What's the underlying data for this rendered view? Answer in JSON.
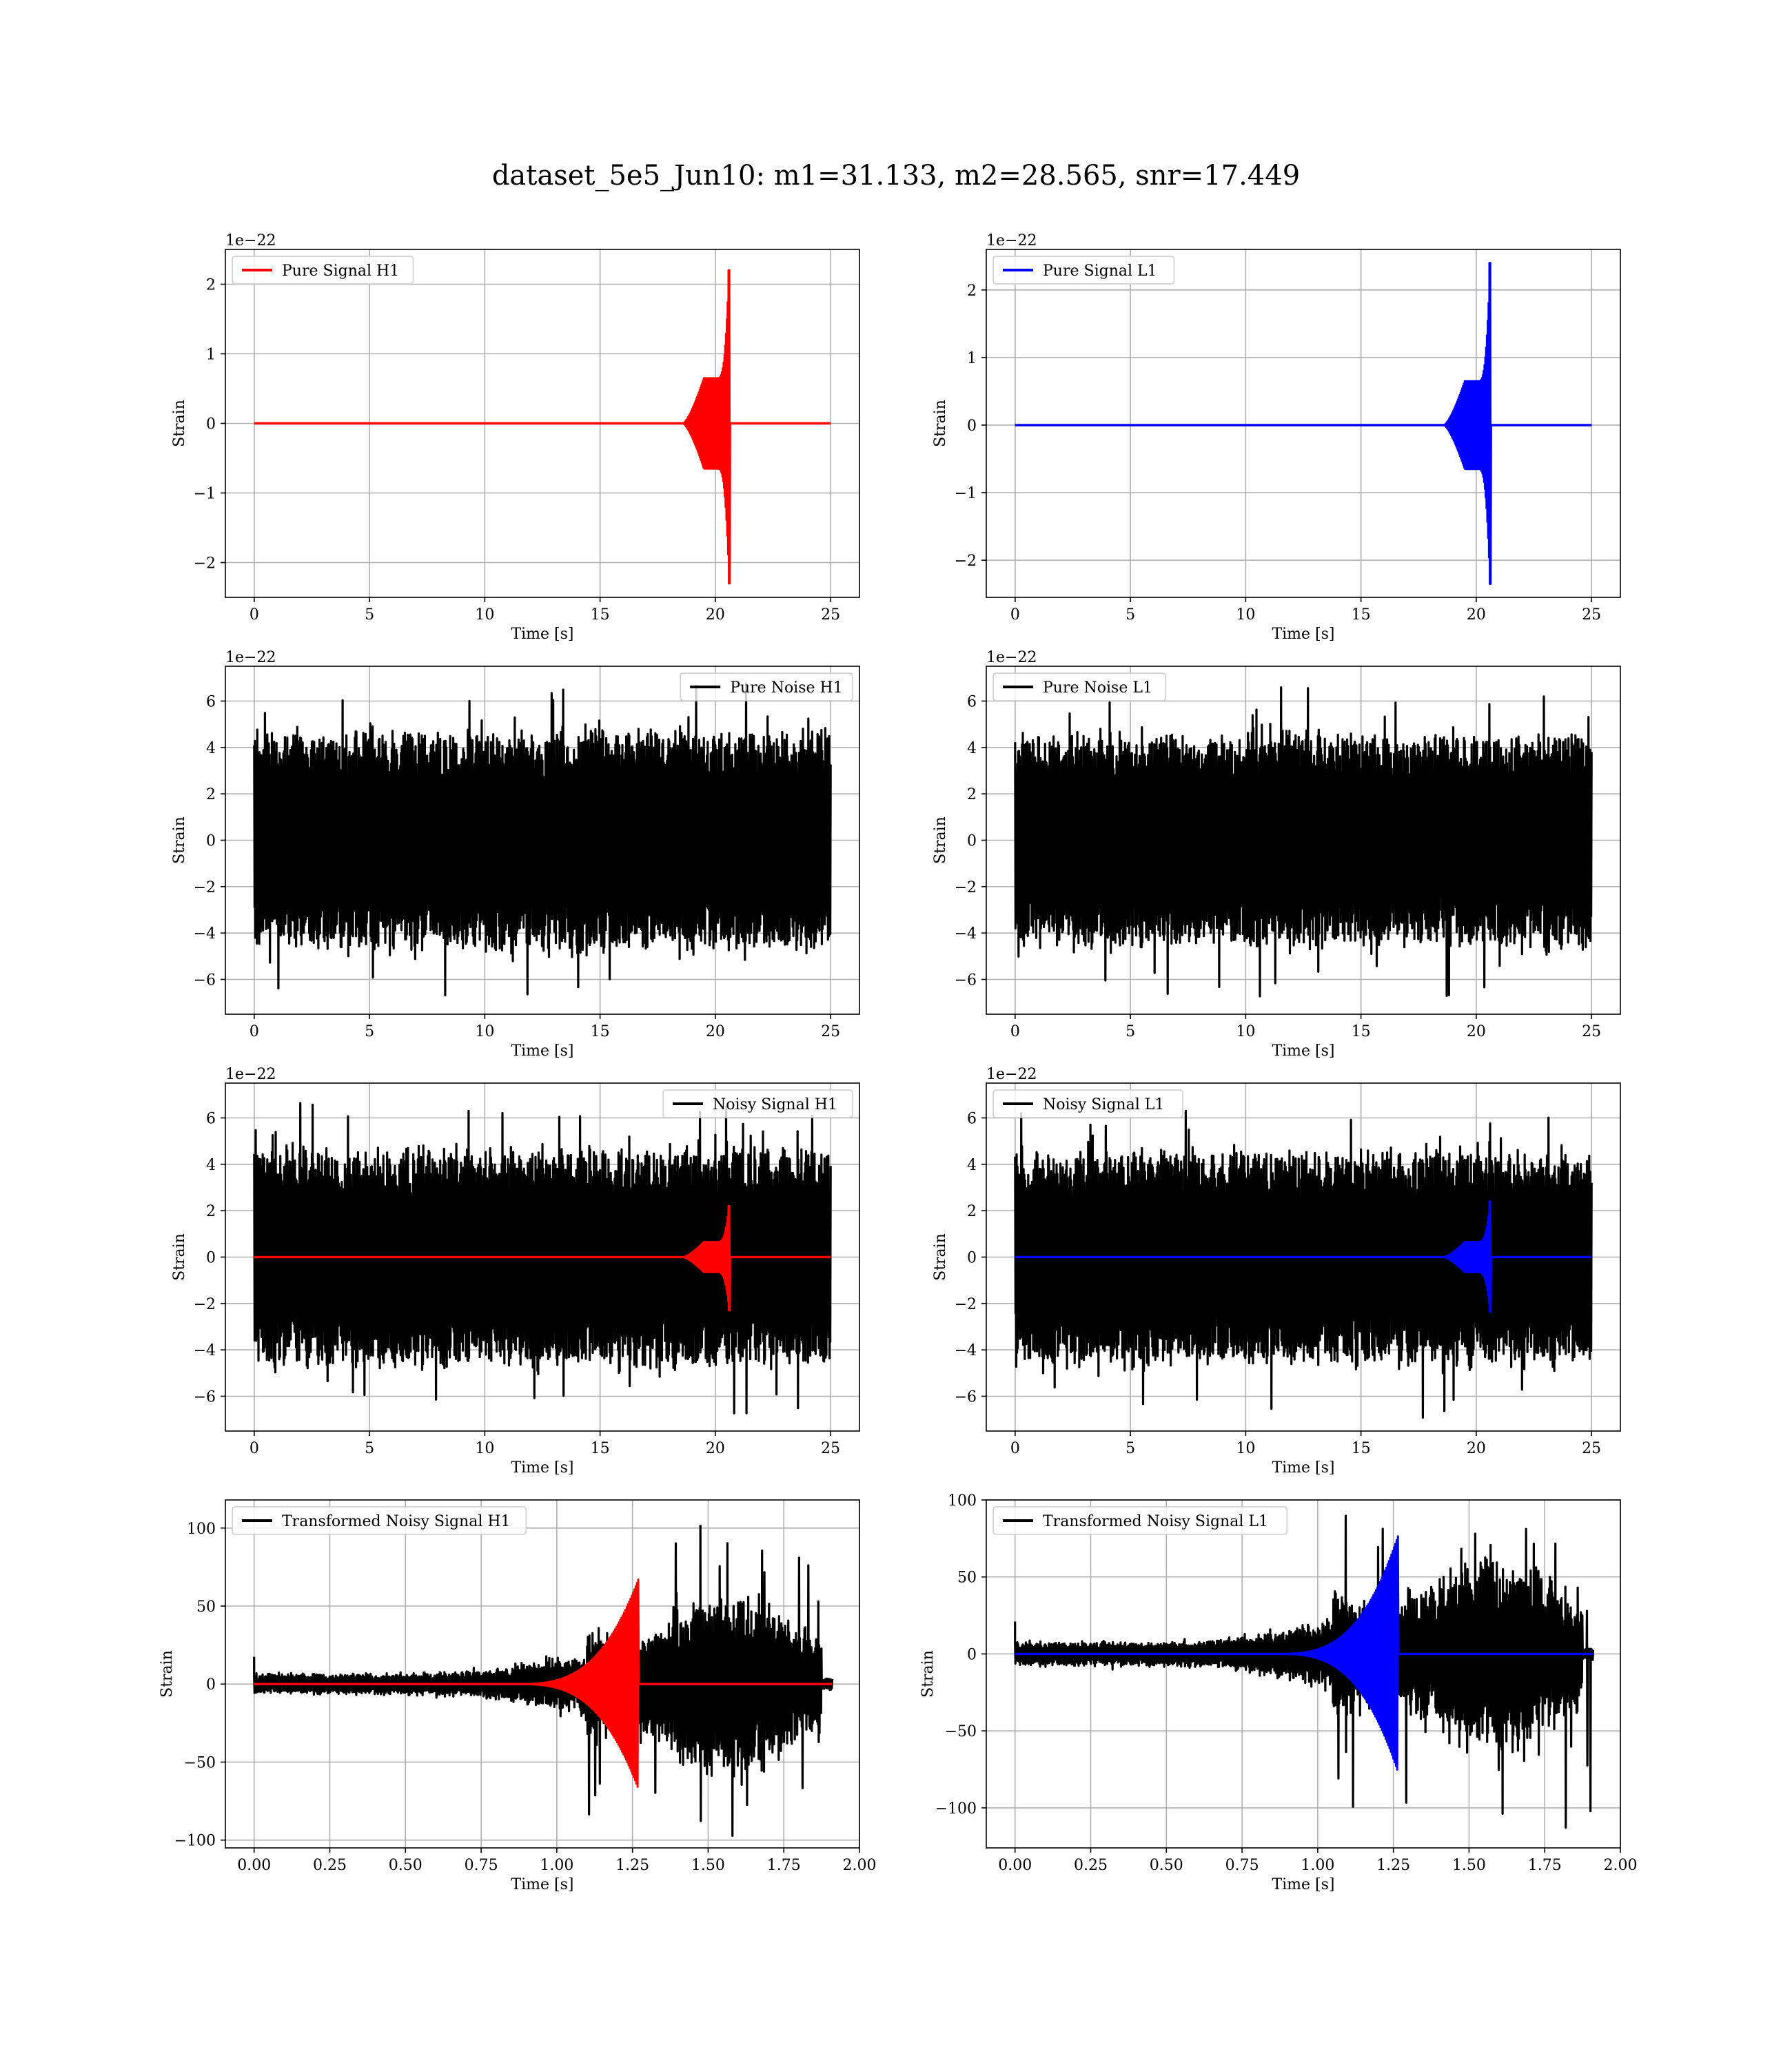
{
  "suptitle": "dataset_5e5_Jun10: m1=31.133, m2=28.565, snr=17.449",
  "colors": {
    "h1_signal": "#ff0000",
    "l1_signal": "#0000ff",
    "noise": "#000000",
    "grid": "#b0b0b0"
  },
  "chart_data": [
    {
      "id": "pure-signal-h1",
      "type": "line",
      "xlabel": "Time [s]",
      "ylabel": "Strain",
      "offset_label": "1e−22",
      "xlim": [
        -1.25,
        26.25
      ],
      "ylim": [
        -2.5,
        2.5
      ],
      "xticks": [
        0,
        5,
        10,
        15,
        20,
        25
      ],
      "xticklabels": [
        "0",
        "5",
        "10",
        "15",
        "20",
        "25"
      ],
      "yticks": [
        -2,
        -1,
        0,
        1,
        2
      ],
      "yticklabels": [
        "−2",
        "−1",
        "0",
        "1",
        "2"
      ],
      "legend": "top-left",
      "grid": true,
      "series": [
        {
          "name": "Pure Signal H1",
          "kind": "chirp",
          "color": "#ff0000",
          "x": [
            0,
            25
          ],
          "merger": 20.6,
          "peak_max": 2.2,
          "peak_min": -2.3,
          "plateau": 0.65,
          "onset": 18.6,
          "in_legend": true
        }
      ]
    },
    {
      "id": "pure-signal-l1",
      "type": "line",
      "xlabel": "Time [s]",
      "ylabel": "Strain",
      "offset_label": "1e−22",
      "xlim": [
        -1.25,
        26.25
      ],
      "ylim": [
        -2.55,
        2.6
      ],
      "xticks": [
        0,
        5,
        10,
        15,
        20,
        25
      ],
      "xticklabels": [
        "0",
        "5",
        "10",
        "15",
        "20",
        "25"
      ],
      "yticks": [
        -2,
        -1,
        0,
        1,
        2
      ],
      "yticklabels": [
        "−2",
        "−1",
        "0",
        "1",
        "2"
      ],
      "legend": "top-left",
      "grid": true,
      "series": [
        {
          "name": "Pure Signal L1",
          "kind": "chirp",
          "color": "#0000ff",
          "x": [
            0,
            25
          ],
          "merger": 20.6,
          "peak_max": 2.4,
          "peak_min": -2.35,
          "plateau": 0.65,
          "onset": 18.6,
          "in_legend": true
        }
      ]
    },
    {
      "id": "pure-noise-h1",
      "type": "line",
      "xlabel": "Time [s]",
      "ylabel": "Strain",
      "offset_label": "1e−22",
      "xlim": [
        -1.25,
        26.25
      ],
      "ylim": [
        -7.5,
        7.5
      ],
      "xticks": [
        0,
        5,
        10,
        15,
        20,
        25
      ],
      "xticklabels": [
        "0",
        "5",
        "10",
        "15",
        "20",
        "25"
      ],
      "yticks": [
        -6,
        -4,
        -2,
        0,
        2,
        4,
        6
      ],
      "yticklabels": [
        "−6",
        "−4",
        "−2",
        "0",
        "2",
        "4",
        "6"
      ],
      "legend": "top-right",
      "grid": true,
      "series": [
        {
          "name": "Pure Noise H1",
          "kind": "noise",
          "color": "#000000",
          "x": [
            0,
            25
          ],
          "envelope": [
            -4.3,
            4.3
          ],
          "max": 6.8,
          "min": -6.9,
          "in_legend": true
        }
      ]
    },
    {
      "id": "pure-noise-l1",
      "type": "line",
      "xlabel": "Time [s]",
      "ylabel": "Strain",
      "offset_label": "1e−22",
      "xlim": [
        -1.25,
        26.25
      ],
      "ylim": [
        -7.5,
        7.5
      ],
      "xticks": [
        0,
        5,
        10,
        15,
        20,
        25
      ],
      "xticklabels": [
        "0",
        "5",
        "10",
        "15",
        "20",
        "25"
      ],
      "yticks": [
        -6,
        -4,
        -2,
        0,
        2,
        4,
        6
      ],
      "yticklabels": [
        "−6",
        "−4",
        "−2",
        "0",
        "2",
        "4",
        "6"
      ],
      "legend": "top-left",
      "grid": true,
      "series": [
        {
          "name": "Pure Noise L1",
          "kind": "noise",
          "color": "#000000",
          "x": [
            0,
            25
          ],
          "envelope": [
            -4.2,
            4.2
          ],
          "max": 6.6,
          "min": -7.0,
          "in_legend": true
        }
      ]
    },
    {
      "id": "noisy-signal-h1",
      "type": "line",
      "xlabel": "Time [s]",
      "ylabel": "Strain",
      "offset_label": "1e−22",
      "xlim": [
        -1.25,
        26.25
      ],
      "ylim": [
        -7.5,
        7.5
      ],
      "xticks": [
        0,
        5,
        10,
        15,
        20,
        25
      ],
      "xticklabels": [
        "0",
        "5",
        "10",
        "15",
        "20",
        "25"
      ],
      "yticks": [
        -6,
        -4,
        -2,
        0,
        2,
        4,
        6
      ],
      "yticklabels": [
        "−6",
        "−4",
        "−2",
        "0",
        "2",
        "4",
        "6"
      ],
      "legend": "top-right",
      "grid": true,
      "series": [
        {
          "name": "Noisy Signal H1",
          "kind": "noise",
          "color": "#000000",
          "x": [
            0,
            25
          ],
          "envelope": [
            -4.3,
            4.3
          ],
          "max": 6.8,
          "min": -6.9,
          "in_legend": true
        },
        {
          "name": "",
          "kind": "chirp",
          "color": "#ff0000",
          "x": [
            0,
            25
          ],
          "merger": 20.6,
          "peak_max": 2.2,
          "peak_min": -2.3,
          "plateau": 0.65,
          "onset": 18.6,
          "in_legend": false
        }
      ]
    },
    {
      "id": "noisy-signal-l1",
      "type": "line",
      "xlabel": "Time [s]",
      "ylabel": "Strain",
      "offset_label": "1e−22",
      "xlim": [
        -1.25,
        26.25
      ],
      "ylim": [
        -7.5,
        7.5
      ],
      "xticks": [
        0,
        5,
        10,
        15,
        20,
        25
      ],
      "xticklabels": [
        "0",
        "5",
        "10",
        "15",
        "20",
        "25"
      ],
      "yticks": [
        -6,
        -4,
        -2,
        0,
        2,
        4,
        6
      ],
      "yticklabels": [
        "−6",
        "−4",
        "−2",
        "0",
        "2",
        "4",
        "6"
      ],
      "legend": "top-left",
      "grid": true,
      "series": [
        {
          "name": "Noisy Signal L1",
          "kind": "noise",
          "color": "#000000",
          "x": [
            0,
            25
          ],
          "envelope": [
            -4.2,
            4.2
          ],
          "max": 6.6,
          "min": -7.0,
          "in_legend": true
        },
        {
          "name": "",
          "kind": "chirp",
          "color": "#0000ff",
          "x": [
            0,
            25
          ],
          "merger": 20.6,
          "peak_max": 2.4,
          "peak_min": -2.35,
          "plateau": 0.65,
          "onset": 18.6,
          "in_legend": false
        }
      ]
    },
    {
      "id": "transformed-h1",
      "type": "line",
      "xlabel": "Time [s]",
      "ylabel": "Strain",
      "offset_label": "",
      "xlim": [
        -0.095,
        2.0
      ],
      "ylim": [
        -105,
        118
      ],
      "xticks": [
        0,
        0.25,
        0.5,
        0.75,
        1.0,
        1.25,
        1.5,
        1.75,
        2.0
      ],
      "xticklabels": [
        "0.00",
        "0.25",
        "0.50",
        "0.75",
        "1.00",
        "1.25",
        "1.50",
        "1.75",
        "2.00"
      ],
      "yticks": [
        -100,
        -50,
        0,
        50,
        100
      ],
      "yticklabels": [
        "−100",
        "−50",
        "0",
        "50",
        "100"
      ],
      "legend": "top-left",
      "grid": true,
      "series": [
        {
          "name": "Transformed Noisy Signal H1",
          "kind": "whitened",
          "color": "#000000",
          "x": [
            0,
            1.91
          ],
          "quiet": 5,
          "loud": 45,
          "rise": 1.1,
          "end_burst": 1.87,
          "max": 110,
          "min": -98,
          "in_legend": true
        },
        {
          "name": "",
          "kind": "whitened-chirp",
          "color": "#ff0000",
          "x": [
            0,
            1.91
          ],
          "merger": 1.255,
          "peak": 60,
          "onset": 0.85,
          "in_legend": false
        }
      ]
    },
    {
      "id": "transformed-l1",
      "type": "line",
      "xlabel": "Time [s]",
      "ylabel": "Strain",
      "offset_label": "",
      "xlim": [
        -0.095,
        2.0
      ],
      "ylim": [
        -126,
        100
      ],
      "xticks": [
        0,
        0.25,
        0.5,
        0.75,
        1.0,
        1.25,
        1.5,
        1.75,
        2.0
      ],
      "xticklabels": [
        "0.00",
        "0.25",
        "0.50",
        "0.75",
        "1.00",
        "1.25",
        "1.50",
        "1.75",
        "2.00"
      ],
      "yticks": [
        -100,
        -50,
        0,
        50,
        100
      ],
      "yticklabels": [
        "−100",
        "−50",
        "0",
        "50",
        "100"
      ],
      "legend": "top-left",
      "grid": true,
      "series": [
        {
          "name": "Transformed Noisy Signal L1",
          "kind": "whitened",
          "color": "#000000",
          "x": [
            0,
            1.91
          ],
          "quiet": 6,
          "loud": 50,
          "rise": 1.05,
          "end_burst": 1.87,
          "max": 92,
          "min": -115,
          "in_legend": true
        },
        {
          "name": "",
          "kind": "whitened-chirp",
          "color": "#0000ff",
          "x": [
            0,
            1.91
          ],
          "merger": 1.25,
          "peak": 68,
          "onset": 0.85,
          "in_legend": false
        }
      ]
    }
  ]
}
